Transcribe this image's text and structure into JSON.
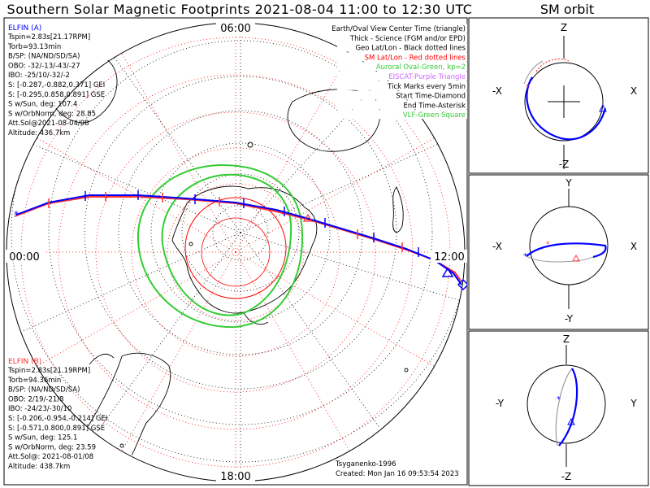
{
  "title": "Southern Solar Magnetic Footprints 2021-08-04 11:00 to 12:30 UTC",
  "orbit_title": "SM orbit",
  "clock_labels": {
    "top": "06:00",
    "left": "00:00",
    "right": "12:00",
    "bottom": "18:00"
  },
  "elfin_a": {
    "header": "ELFIN (A)",
    "lines": [
      "Tspin=2.83s[21.17RPM]",
      "Torb=93.13min",
      "B/SP: (NA/ND/SD/SA)",
      "OBO: -32/-13/-43/-27",
      "IBO: -25/10/-32/-2",
      "S: [-0.287,-0.882,0.371] GEI",
      "S: [-0.295,0.858,0.891] GSE",
      "S w/Sun, deg: 107.4",
      "S w/OrbNorm, deg: 28.85",
      "Att.Sol@2021-08-04/08",
      "Altitude: 436.7km"
    ]
  },
  "elfin_b": {
    "header": "ELFIN (B)",
    "lines": [
      "Tspin=2.83s[21.19RPM]",
      "Torb=94.36min",
      "B/SP: (NA/ND/SD/SA)",
      "OBO: 2/19/-21/8",
      "IBO: -24/23/-30/10",
      "S: [-0.206,-0.954,-0.214] GEI",
      "S: [-0.571,0.800,0.891] GSE",
      "S w/Sun, deg: 125.1",
      "S w/OrbNorm, deg: 23.59",
      "Att.Sol@: 2021-08-01/08",
      "Altitude: 438.7km"
    ]
  },
  "legend": [
    {
      "text": "Earth/Oval View Center Time (triangle)",
      "color": "#000000"
    },
    {
      "text": "Thick - Science (FGM and/or EPD)",
      "color": "#000000"
    },
    {
      "text": "Geo Lat/Lon - Black dotted lines",
      "color": "#000000"
    },
    {
      "text": "SM Lat/Lon - Red dotted lines",
      "color": "#ff0000"
    },
    {
      "text": "Auroral Oval-Green, kp=2",
      "color": "#33cc33"
    },
    {
      "text": "EISCAT-Purple Triangle",
      "color": "#cc66ff"
    },
    {
      "text": "Tick Marks every 5min",
      "color": "#000000"
    },
    {
      "text": "Start Time-Diamond",
      "color": "#000000"
    },
    {
      "text": "End Time-Asterisk",
      "color": "#000000"
    },
    {
      "text": "VLF-Green Square",
      "color": "#33cc33"
    }
  ],
  "credit": "Tsyganenko-1996",
  "created": "Created: Mon Jan 16 09:53:54 2023",
  "orbit_panels": [
    {
      "top": "Z",
      "bottom": "-Z",
      "left": "-X",
      "right": "X"
    },
    {
      "top": "Y",
      "bottom": "-Y",
      "left": "-X",
      "right": "X"
    },
    {
      "top": "Z",
      "bottom": "-Z",
      "left": "-Y",
      "right": "Y"
    }
  ],
  "colors": {
    "elfin_a": "#0000ff",
    "elfin_b": "#ff3333",
    "sm_grid": "#ff0000",
    "geo_grid": "#000000",
    "auroral_oval": "#33cc33",
    "orbit_grey": "#999999"
  }
}
